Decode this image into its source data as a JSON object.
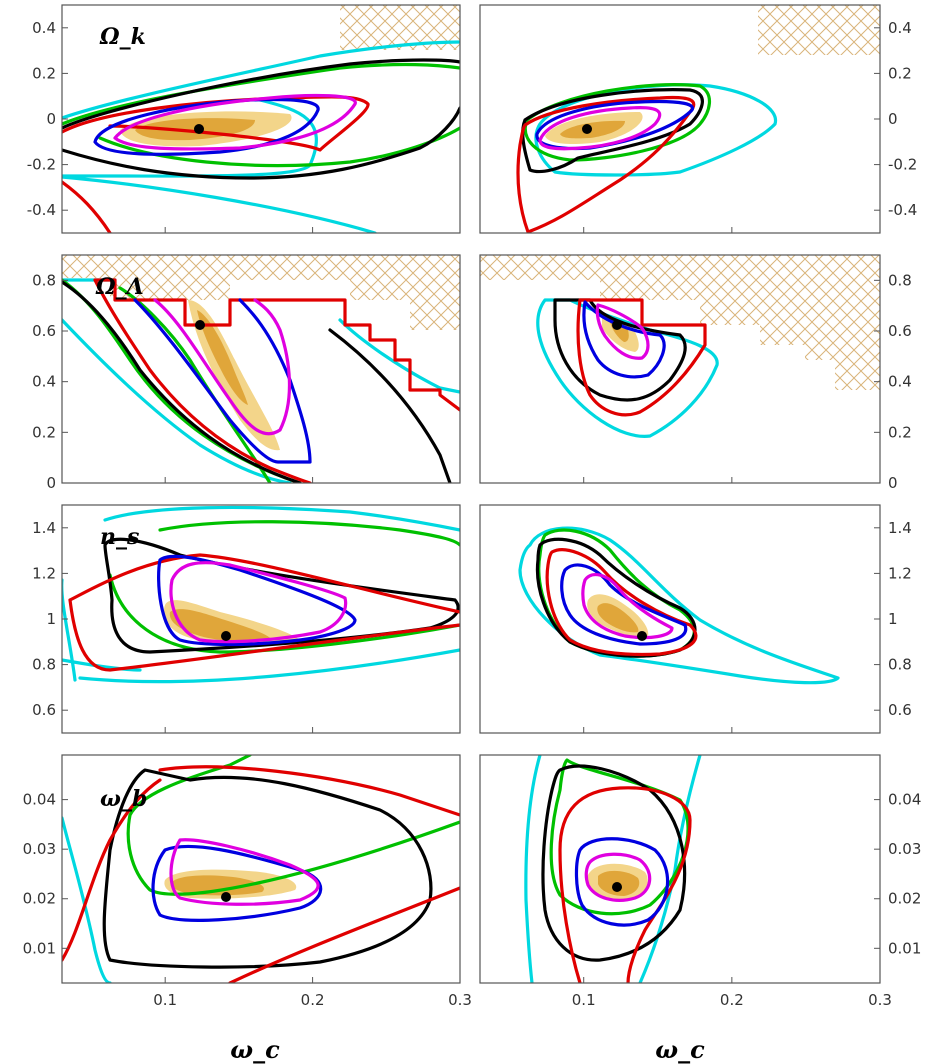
{
  "chart_data": {
    "type": "contour",
    "title": "",
    "colors": {
      "inner_fill": "#e0a63a",
      "outer_fill": "#f3d58a",
      "hatch": "#d9b47a",
      "series": [
        "#00d8e0",
        "#00c000",
        "#000000",
        "#e00000",
        "#0000e0",
        "#e000e0"
      ]
    },
    "xlabel": "ω_c",
    "x_ticks": [
      "0.1",
      "0.2",
      "0.3"
    ],
    "xlim": [
      0.03,
      0.3
    ],
    "rows": [
      {
        "param": "Ω_k",
        "y_ticks": [
          "0.4",
          "0.2",
          "0",
          "-0.2",
          "-0.4"
        ],
        "ylim": [
          -0.5,
          0.5
        ]
      },
      {
        "param": "Ω_Λ",
        "y_ticks": [
          "0.8",
          "0.6",
          "0.4",
          "0.2",
          "0"
        ],
        "ylim": [
          0,
          0.9
        ]
      },
      {
        "param": "n_s",
        "y_ticks": [
          "1.4",
          "1.2",
          "1",
          "0.8",
          "0.6"
        ],
        "ylim": [
          0.5,
          1.5
        ]
      },
      {
        "param": "ω_b",
        "y_ticks": [
          "0.04",
          "0.03",
          "0.02",
          "0.01"
        ],
        "ylim": [
          0.003,
          0.049
        ]
      }
    ],
    "best_fit": {
      "left": [
        {
          "x": 0.12,
          "y": -0.05
        },
        {
          "x": 0.12,
          "y": 0.7
        },
        {
          "x": 0.14,
          "y": 0.93
        },
        {
          "x": 0.14,
          "y": 0.021
        }
      ],
      "right": [
        {
          "x": 0.1,
          "y": -0.05
        },
        {
          "x": 0.12,
          "y": 0.7
        },
        {
          "x": 0.14,
          "y": 0.93
        },
        {
          "x": 0.12,
          "y": 0.023
        }
      ]
    }
  }
}
